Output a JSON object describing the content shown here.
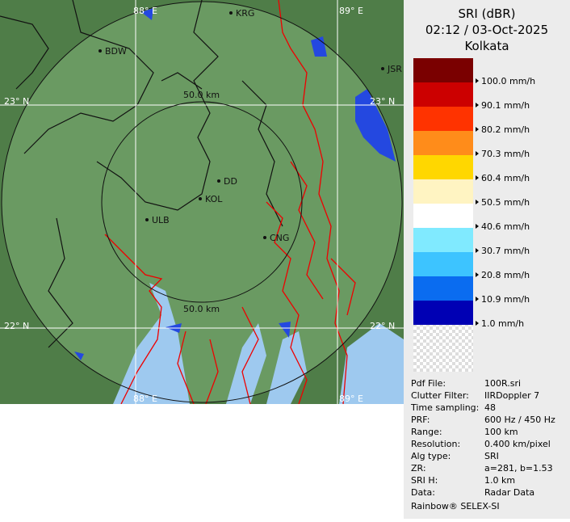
{
  "map": {
    "lon_labels": [
      "88° E",
      "89° E",
      "88° E",
      "89° E"
    ],
    "lat_labels": [
      "23° N",
      "23° N",
      "22° N",
      "22° N"
    ],
    "range_labels": [
      "50.0 km",
      "50.0 km"
    ],
    "places": [
      "KRG",
      "BDW",
      "JSR",
      "DD",
      "KOL",
      "ULB",
      "CNG"
    ]
  },
  "legend": {
    "title": "SRI (dBR)",
    "time": "02:12 / 03-Oct-2025",
    "station": "Kolkata",
    "colors": [
      "#7a0000",
      "#cc0000",
      "#ff3300",
      "#ff8c1a",
      "#ffd700",
      "#fff4c2",
      "#ffffff",
      "#80eaff",
      "#3dc4ff",
      "#0a6cf0",
      "#0000b4"
    ],
    "labels": [
      "100.0 mm/h",
      "90.1 mm/h",
      "80.2 mm/h",
      "70.3 mm/h",
      "60.4 mm/h",
      "50.5 mm/h",
      "40.6 mm/h",
      "30.7 mm/h",
      "20.8 mm/h",
      "10.9 mm/h",
      "1.0 mm/h"
    ]
  },
  "info": {
    "rows": [
      [
        "Pdf File:",
        "100R.sri"
      ],
      [
        "Clutter Filter:",
        "IIRDoppler 7"
      ],
      [
        "Time sampling:",
        "48"
      ],
      [
        "PRF:",
        "600 Hz / 450 Hz"
      ],
      [
        "Range:",
        "100 km"
      ],
      [
        "Resolution:",
        "0.400 km/pixel"
      ],
      [
        "Alg type:",
        "SRI"
      ],
      [
        "ZR:",
        "a=281, b=1.53"
      ],
      [
        "SRI H:",
        "1.0 km"
      ],
      [
        "Data:",
        "Radar Data"
      ]
    ],
    "footer": "Rainbow® SELEX-SI"
  }
}
